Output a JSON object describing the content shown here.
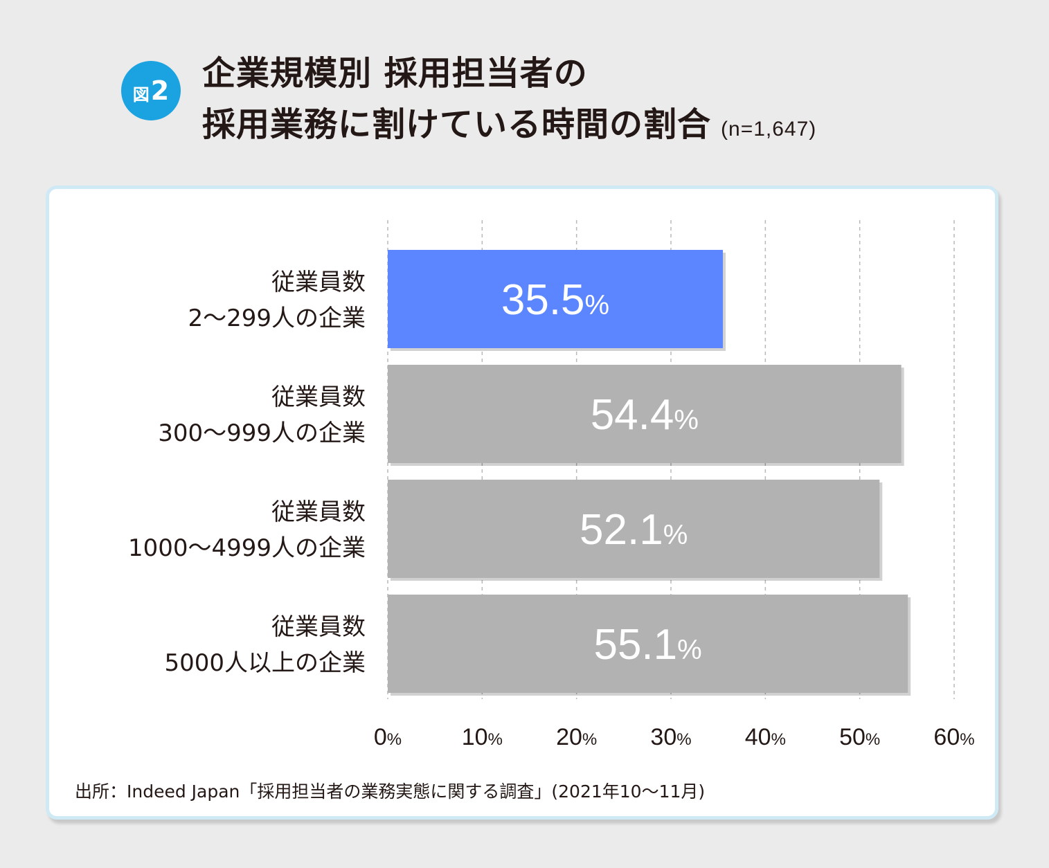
{
  "header": {
    "badge_prefix": "図",
    "badge_number": "2",
    "title_line1": "企業規模別 採用担当者の",
    "title_line2": "採用業務に割けている時間の割合",
    "sample_note": "(n=1,647)"
  },
  "colors": {
    "highlight_bar": "#5b86ff",
    "default_bar": "#b2b2b2",
    "badge": "#1aa3e0",
    "card_border": "#d0eaf5",
    "text": "#231815"
  },
  "chart_data": {
    "type": "bar",
    "orientation": "horizontal",
    "categories": [
      [
        "従業員数",
        "2〜299人の企業"
      ],
      [
        "従業員数",
        "300〜999人の企業"
      ],
      [
        "従業員数",
        "1000〜4999人の企業"
      ],
      [
        "従業員数",
        "5000人以上の企業"
      ]
    ],
    "values": [
      35.5,
      54.4,
      52.1,
      55.1
    ],
    "value_labels": [
      "35.5",
      "54.4",
      "52.1",
      "55.1"
    ],
    "value_unit": "%",
    "highlight_index": 0,
    "xlim": [
      0,
      60
    ],
    "xticks": [
      0,
      10,
      20,
      30,
      40,
      50,
      60
    ],
    "tick_unit": "%",
    "grid": "vertical-dashed"
  },
  "footer": {
    "source": "出所：Indeed Japan「採用担当者の業務実態に関する調査」(2021年10〜11月)"
  }
}
